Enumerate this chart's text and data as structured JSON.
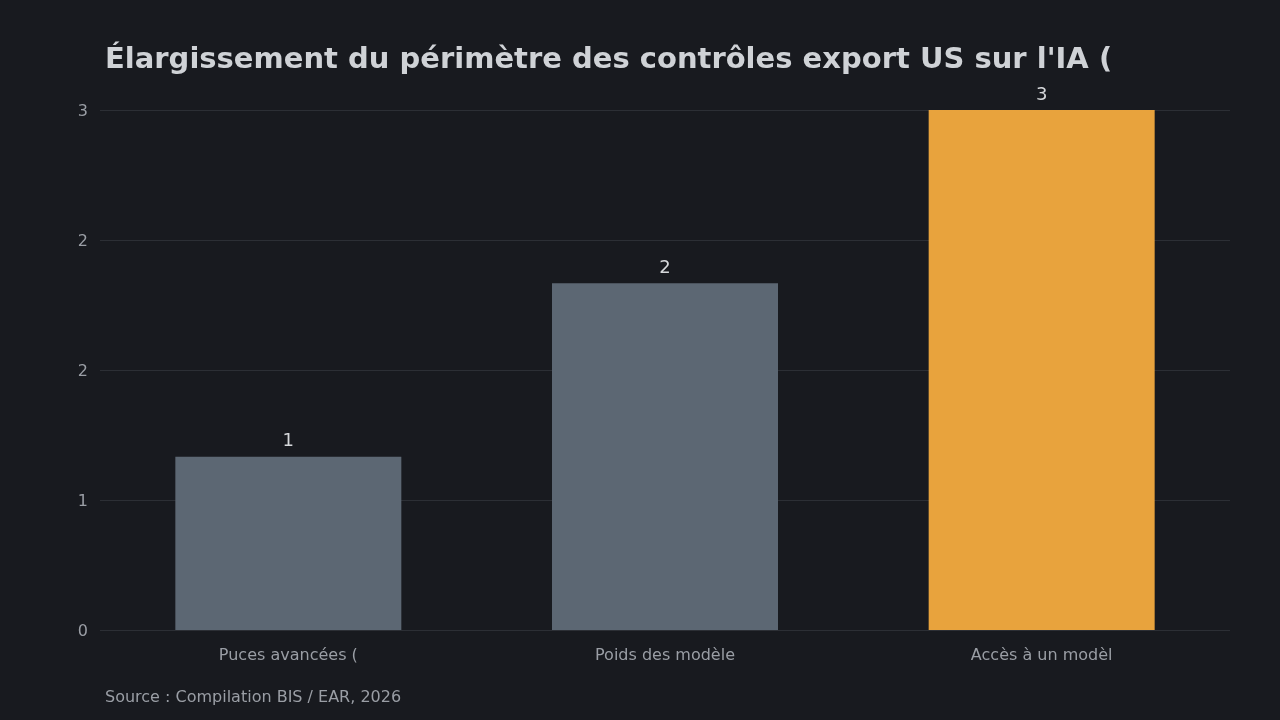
{
  "chart_data": {
    "type": "bar",
    "title": "Élargissement du périmètre des contrôles export US sur l'IA (",
    "categories": [
      "Puces avancées (",
      "Poids des modèle",
      "Accès à un modèl"
    ],
    "values": [
      1,
      2,
      3
    ],
    "colors": [
      "#5c6773",
      "#5c6773",
      "#e8a33d"
    ],
    "ylim": [
      0,
      3
    ],
    "yticks": [
      0,
      {
        "value": 0.75,
        "label": "1"
      },
      {
        "value": 1.5,
        "label": "2"
      },
      {
        "value": 2.25,
        "label": "2"
      },
      3
    ],
    "grid": "y",
    "data_labels": true,
    "annotations": [
      "Source : Compilation BIS / EAR, 2026"
    ]
  }
}
